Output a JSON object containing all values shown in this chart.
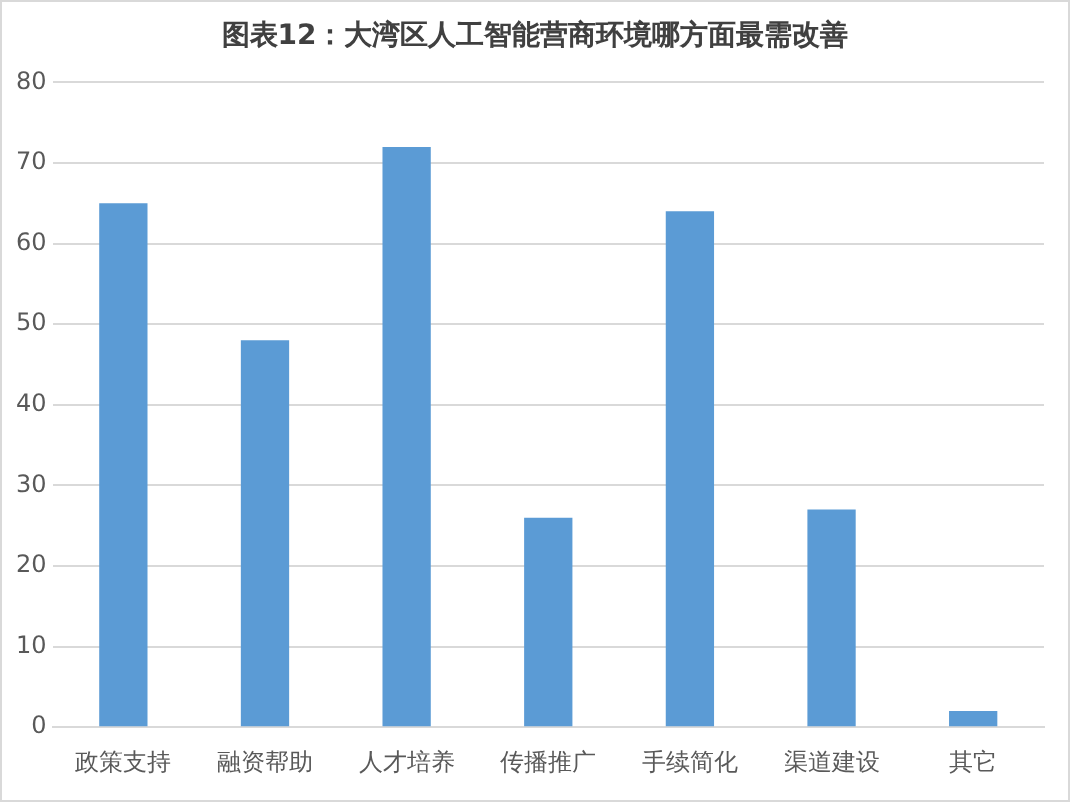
{
  "chart_data": {
    "type": "bar",
    "title": "图表12：大湾区人工智能营商环境哪方面最需改善",
    "categories": [
      "政策支持",
      "融资帮助",
      "人才培养",
      "传播推广",
      "手续简化",
      "渠道建设",
      "其它"
    ],
    "values": [
      65,
      48,
      72,
      26,
      64,
      27,
      2
    ],
    "color": "#5b9bd5",
    "ylim": [
      0,
      80
    ],
    "yticks": [
      0,
      10,
      20,
      30,
      40,
      50,
      60,
      70,
      80
    ],
    "grid": "y",
    "legend": false
  }
}
